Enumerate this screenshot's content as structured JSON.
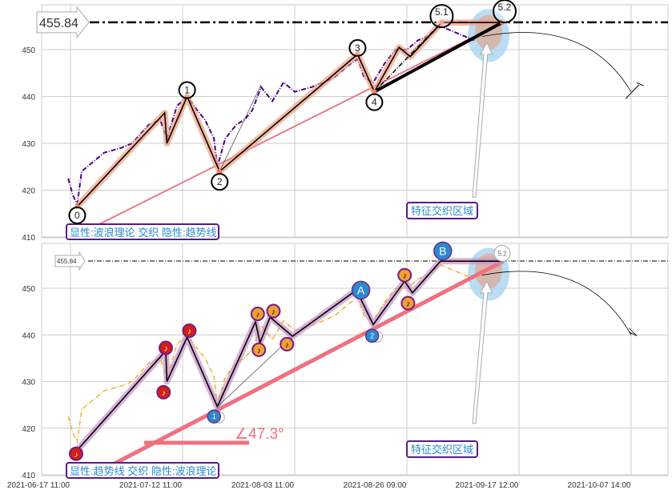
{
  "chart_data": [
    {
      "type": "line",
      "panel": "top",
      "ylim": [
        410,
        457
      ],
      "yticks": [
        410,
        420,
        430,
        440,
        450
      ],
      "xlim": [
        -0.26,
        5.33
      ],
      "price_level": {
        "value": 455.84,
        "label": "455.84"
      },
      "price_series": {
        "color": "#4b0082",
        "style": "dash-dot",
        "points": [
          [
            -0.02,
            422.5
          ],
          [
            0.02,
            419
          ],
          [
            0.06,
            417
          ],
          [
            0.1,
            424
          ],
          [
            0.2,
            426
          ],
          [
            0.3,
            428
          ],
          [
            0.45,
            429
          ],
          [
            0.55,
            430
          ],
          [
            0.7,
            434
          ],
          [
            0.8,
            435
          ],
          [
            0.86,
            431
          ],
          [
            0.95,
            438
          ],
          [
            1.04,
            440
          ],
          [
            1.1,
            438
          ],
          [
            1.2,
            435
          ],
          [
            1.28,
            431
          ],
          [
            1.31,
            425
          ],
          [
            1.38,
            431
          ],
          [
            1.48,
            434
          ],
          [
            1.55,
            435
          ],
          [
            1.62,
            437
          ],
          [
            1.7,
            442
          ],
          [
            1.8,
            439
          ],
          [
            1.9,
            443
          ],
          [
            2.0,
            441
          ],
          [
            2.15,
            442
          ],
          [
            2.35,
            444
          ],
          [
            2.5,
            447
          ],
          [
            2.56,
            448
          ],
          [
            2.62,
            444
          ],
          [
            2.7,
            443
          ],
          [
            2.8,
            447
          ],
          [
            2.9,
            450
          ],
          [
            3.0,
            450
          ],
          [
            3.1,
            452
          ],
          [
            3.2,
            453
          ],
          [
            3.3,
            455
          ],
          [
            3.4,
            454
          ],
          [
            3.5,
            453
          ],
          [
            3.6,
            452
          ]
        ]
      },
      "wave_points": [
        {
          "label": "0",
          "x": 0.06,
          "y": 416.5
        },
        {
          "x": 0.84,
          "y": 436.5
        },
        {
          "x": 0.86,
          "y": 430
        },
        {
          "label": "1",
          "x": 1.04,
          "y": 440
        },
        {
          "label": "2",
          "x": 1.33,
          "y": 424
        },
        {
          "label": "3",
          "x": 2.56,
          "y": 449
        },
        {
          "label": "4",
          "x": 2.71,
          "y": 441
        },
        {
          "x": 2.93,
          "y": 450.5
        },
        {
          "x": 3.03,
          "y": 448.5
        },
        {
          "label": "5.1",
          "x": 3.31,
          "y": 455.8
        },
        {
          "label": "5.2",
          "x": 3.85,
          "y": 455.8
        }
      ],
      "trend_line": {
        "from": [
          0.17,
          411.7
        ],
        "to": [
          3.85,
          455.8
        ],
        "color": "#e87080"
      },
      "caption": "显性:波浪理论 交织 隐性:趋势线",
      "region_label": "特征交织区域"
    },
    {
      "type": "line",
      "panel": "bottom",
      "ylim": [
        410,
        457
      ],
      "yticks": [
        410,
        420,
        430,
        440,
        450
      ],
      "xlim": [
        -0.26,
        5.33
      ],
      "xticks": [
        "2021-06-17 11:00",
        "2021-07-12 11:00",
        "2021-08-03 11:00",
        "2021-08-26 09:00",
        "2021-09-17 12:00",
        "2021-10-07 14:00"
      ],
      "price_level": {
        "value": 455.84,
        "label": "455.84"
      },
      "price_series": {
        "color": "#f0b030",
        "style": "dash-dot",
        "points": [
          [
            -0.02,
            422.5
          ],
          [
            0.02,
            419
          ],
          [
            0.06,
            417
          ],
          [
            0.1,
            424
          ],
          [
            0.2,
            426
          ],
          [
            0.3,
            428
          ],
          [
            0.45,
            429
          ],
          [
            0.55,
            430
          ],
          [
            0.7,
            434
          ],
          [
            0.8,
            435
          ],
          [
            0.86,
            431
          ],
          [
            0.95,
            438
          ],
          [
            1.04,
            440
          ],
          [
            1.1,
            438
          ],
          [
            1.2,
            435
          ],
          [
            1.28,
            431
          ],
          [
            1.31,
            425
          ],
          [
            1.38,
            431
          ],
          [
            1.48,
            434
          ],
          [
            1.55,
            435
          ],
          [
            1.62,
            437
          ],
          [
            1.7,
            442
          ],
          [
            1.8,
            439
          ],
          [
            1.9,
            443
          ],
          [
            2.0,
            441
          ],
          [
            2.15,
            442
          ],
          [
            2.35,
            444
          ],
          [
            2.5,
            447
          ],
          [
            2.56,
            448
          ],
          [
            2.62,
            444
          ],
          [
            2.7,
            443
          ],
          [
            2.8,
            447
          ],
          [
            2.9,
            450
          ],
          [
            3.0,
            450
          ],
          [
            3.1,
            452
          ],
          [
            3.2,
            453
          ],
          [
            3.3,
            455
          ],
          [
            3.4,
            454
          ],
          [
            3.5,
            453
          ],
          [
            3.6,
            452
          ]
        ]
      },
      "wave_points": [
        {
          "x": 0.05,
          "y": 415
        },
        {
          "x": 0.85,
          "y": 436.6
        },
        {
          "x": 0.86,
          "y": 430
        },
        {
          "x": 1.04,
          "y": 439.5
        },
        {
          "x": 1.31,
          "y": 424.6
        },
        {
          "x": 1.65,
          "y": 442.8
        },
        {
          "x": 1.69,
          "y": 438.3
        },
        {
          "x": 1.78,
          "y": 443.8
        },
        {
          "x": 1.98,
          "y": 439.7
        },
        {
          "x": 2.55,
          "y": 449.6
        },
        {
          "x": 2.7,
          "y": 442.2
        },
        {
          "x": 2.98,
          "y": 451.5
        },
        {
          "x": 3.05,
          "y": 449
        },
        {
          "x": 3.3,
          "y": 455.8
        },
        {
          "x": 3.86,
          "y": 455.8
        }
      ],
      "note_markers": [
        {
          "x": 0.05,
          "y": 414.5,
          "color": "#d42010"
        },
        {
          "x": 0.85,
          "y": 437.2,
          "color": "#d42010"
        },
        {
          "x": 0.83,
          "y": 427.7,
          "color": "#d42010"
        },
        {
          "x": 1.06,
          "y": 440.9,
          "color": "#d42010"
        },
        {
          "x": 1.67,
          "y": 444.5,
          "color": "#f0a030"
        },
        {
          "x": 1.68,
          "y": 436.8,
          "color": "#f0a030"
        },
        {
          "x": 1.81,
          "y": 445.1,
          "color": "#f0a030"
        },
        {
          "x": 1.93,
          "y": 438
        },
        {
          "x": 2.98,
          "y": 452.8
        },
        {
          "x": 3.01,
          "y": 446.8
        }
      ],
      "labels": [
        {
          "text": "1",
          "x": 1.28,
          "y": 422.5,
          "size": "small"
        },
        {
          "text": "A",
          "x": 2.59,
          "y": 449.6,
          "size": "large"
        },
        {
          "text": "2",
          "x": 2.69,
          "y": 439.8,
          "size": "small"
        },
        {
          "text": "B",
          "x": 3.32,
          "y": 458,
          "size": "large"
        },
        {
          "text": "5.2",
          "x": 3.85,
          "y": 457.5,
          "size": "ghost"
        }
      ],
      "trend_line": {
        "from": [
          0.2,
          410
        ],
        "to": [
          3.86,
          455.8
        ],
        "color": "#f07080"
      },
      "angle": {
        "value": 47.3,
        "label": "∠47.3°"
      },
      "caption": "显性:趋势线 交织 隐性:波浪理论",
      "region_label": "特征交织区域"
    }
  ]
}
